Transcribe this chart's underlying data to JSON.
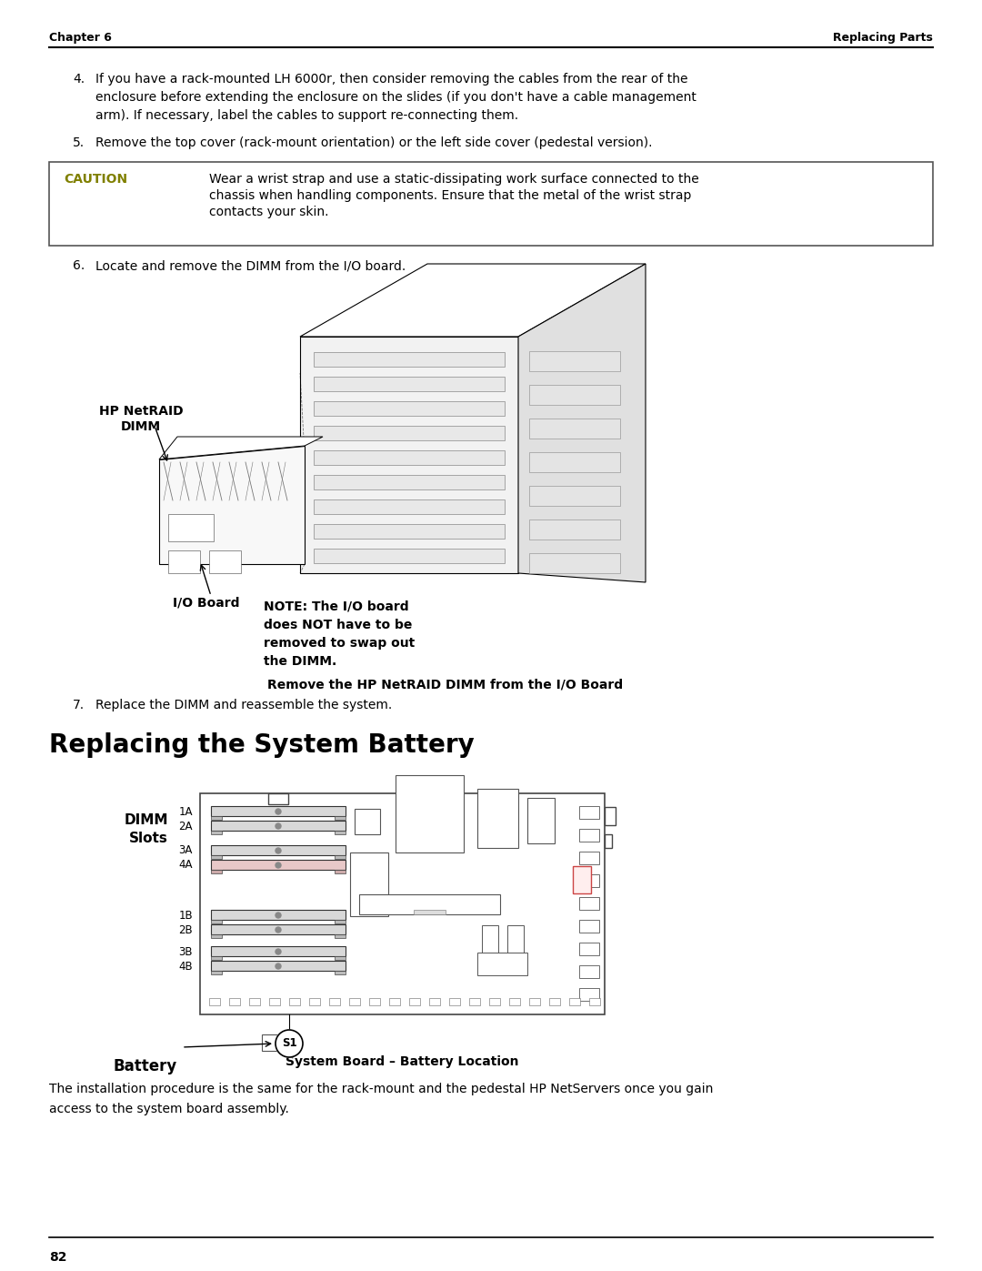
{
  "page_bg": "#ffffff",
  "header_left": "Chapter 6",
  "header_right": "Replacing Parts",
  "footer_text": "82",
  "caution_label": "CAUTION",
  "caution_color": "#808000",
  "caution_text_line1": "Wear a wrist strap and use a static-dissipating work surface connected to the",
  "caution_text_line2": "chassis when handling components. Ensure that the metal of the wrist strap",
  "caution_text_line3": "contacts your skin.",
  "label_netraid_line1": "HP NetRAID",
  "label_netraid_line2": "DIMM",
  "label_ioboard": "I/O Board",
  "note_line1": "NOTE: The I/O board",
  "note_line2": "does NOT have to be",
  "note_line3": "removed to swap out",
  "note_line4": "the DIMM.",
  "fig1_caption": "Remove the HP NetRAID DIMM from the I/O Board",
  "section_title": "Replacing the System Battery",
  "slot_labels_A": [
    "1A",
    "2A",
    "3A",
    "4A"
  ],
  "slot_labels_B": [
    "1B",
    "2B",
    "3B",
    "4B"
  ],
  "dimm_label_line1": "DIMM",
  "dimm_label_line2": "Slots",
  "battery_label": "Battery",
  "s1_label": "S1",
  "fig2_caption": "System Board – Battery Location",
  "closing_line1": "The installation procedure is the same for the rack-mount and the pedestal HP NetServers once you gain",
  "closing_line2": "access to the system board assembly."
}
